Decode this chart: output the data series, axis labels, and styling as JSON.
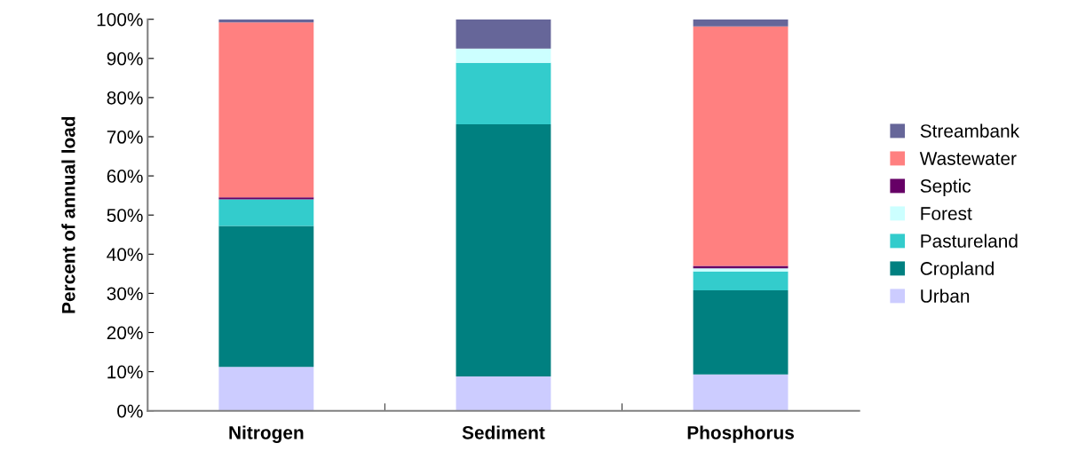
{
  "chart_data": {
    "type": "bar",
    "stacked": true,
    "ylabel": "Percent of annual load",
    "categories": [
      "Nitrogen",
      "Sediment",
      "Phosphorus"
    ],
    "series": [
      {
        "name": "Urban",
        "color": "#ccccff",
        "values": [
          11.2,
          8.8,
          9.3
        ]
      },
      {
        "name": "Cropland",
        "color": "#008080",
        "values": [
          36.0,
          64.4,
          21.5
        ]
      },
      {
        "name": "Pastureland",
        "color": "#33cccc",
        "values": [
          6.8,
          15.7,
          4.8
        ]
      },
      {
        "name": "Forest",
        "color": "#ccffff",
        "values": [
          0,
          3.6,
          0.8
        ]
      },
      {
        "name": "Septic",
        "color": "#660066",
        "values": [
          0.5,
          0,
          0.6
        ]
      },
      {
        "name": "Wastewater",
        "color": "#ff8080",
        "values": [
          44.7,
          0,
          61.2
        ]
      },
      {
        "name": "Streambank",
        "color": "#666699",
        "values": [
          0.8,
          7.5,
          1.8
        ]
      }
    ],
    "ylim": [
      0,
      100
    ],
    "yticks": [
      {
        "value": 0,
        "label": "0%"
      },
      {
        "value": 10,
        "label": "10%"
      },
      {
        "value": 20,
        "label": "20%"
      },
      {
        "value": 30,
        "label": "30%"
      },
      {
        "value": 40,
        "label": "40%"
      },
      {
        "value": 50,
        "label": "50%"
      },
      {
        "value": 60,
        "label": "60%"
      },
      {
        "value": 70,
        "label": "70%"
      },
      {
        "value": 80,
        "label": "80%"
      },
      {
        "value": 90,
        "label": "90%"
      },
      {
        "value": 100,
        "label": "100%"
      }
    ],
    "grid": false,
    "legend": "right"
  }
}
